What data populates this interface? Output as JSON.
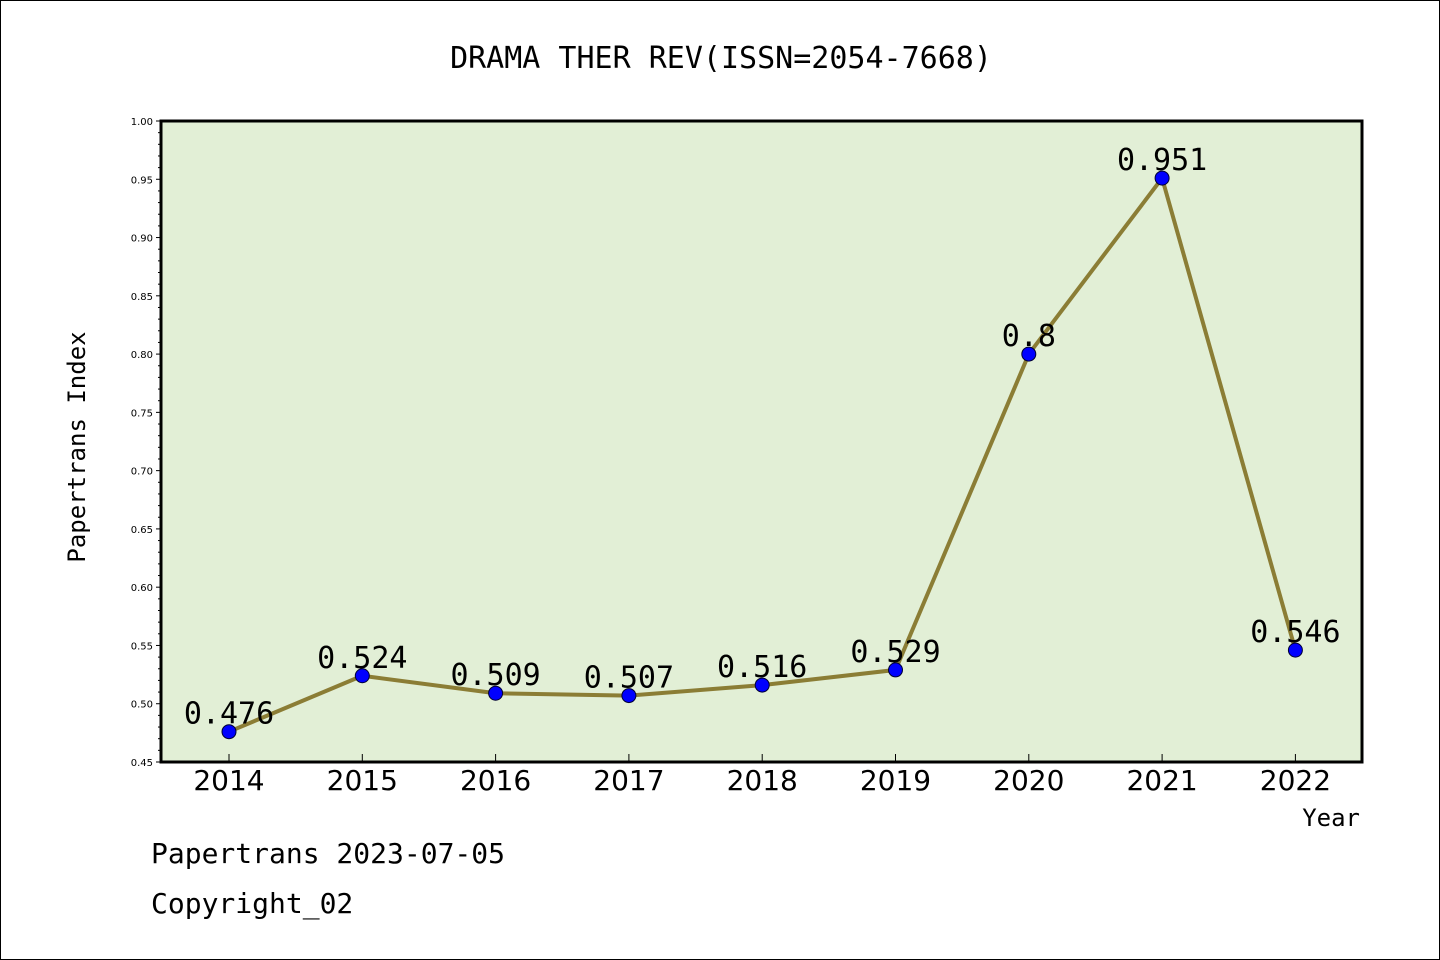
{
  "chart_data": {
    "type": "line",
    "title": "DRAMA THER REV(ISSN=2054-7668)",
    "xlabel": "Year",
    "ylabel": "Papertrans Index",
    "categories": [
      "2014",
      "2015",
      "2016",
      "2017",
      "2018",
      "2019",
      "2020",
      "2021",
      "2022"
    ],
    "series": [
      {
        "values": [
          0.476,
          0.524,
          0.509,
          0.507,
          0.516,
          0.529,
          0.8,
          0.951,
          0.546
        ],
        "data_labels": [
          "0.476",
          "0.524",
          "0.509",
          "0.507",
          "0.516",
          "0.529",
          "0.8",
          "0.951",
          "0.546"
        ]
      }
    ],
    "ylim": [
      0.45,
      1.0
    ],
    "yticks": [
      "0.45",
      "0.50",
      "0.55",
      "0.60",
      "0.65",
      "0.70",
      "0.75",
      "0.80",
      "0.85",
      "0.90",
      "0.95",
      "1.00"
    ],
    "grid": false,
    "legend": "none",
    "colors": {
      "plot_background": "#e2efd6",
      "line": "#8b7d35",
      "marker": "#0000ff"
    }
  },
  "footer": {
    "line1": "Papertrans 2023-07-05",
    "line2": "Copyright_02"
  }
}
